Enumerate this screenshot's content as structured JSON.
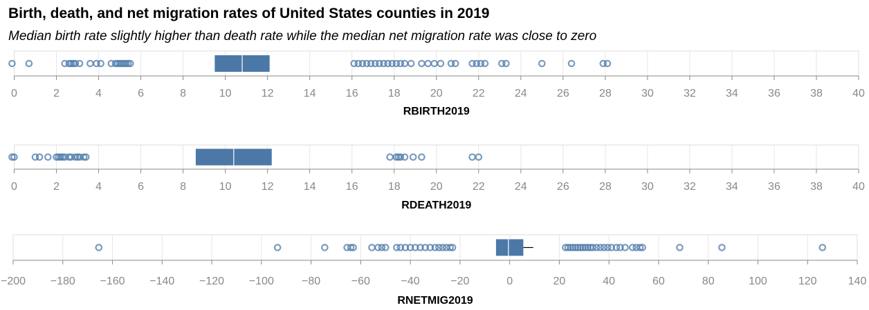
{
  "title": "Birth, death, and net migration rates of United States counties in 2019",
  "subtitle": "Median birth rate slightly higher than death rate while the median net migration rate was close to zero",
  "colors": {
    "box": "#4c78a8",
    "outlier": "#4c78a8",
    "median": "#ffffff",
    "grid": "#e6e6e6",
    "frame": "#dddddd",
    "tick_label": "#888888"
  },
  "chart_data": [
    {
      "type": "boxplot",
      "xlabel": "RBIRTH2019",
      "xlim": [
        0,
        40
      ],
      "ticks": [
        0,
        2,
        4,
        6,
        8,
        10,
        12,
        14,
        16,
        18,
        20,
        22,
        24,
        26,
        28,
        30,
        32,
        34,
        36,
        38,
        40
      ],
      "grid": true,
      "q1": 9.5,
      "median": 10.8,
      "q3": 12.1,
      "whisker_low": 9.5,
      "whisker_high": 12.1,
      "outliers": [
        -0.1,
        0.7,
        2.4,
        2.6,
        2.7,
        2.8,
        2.9,
        3.1,
        3.6,
        3.9,
        4.1,
        4.6,
        4.8,
        4.9,
        5.0,
        5.1,
        5.2,
        5.3,
        5.4,
        5.5,
        16.1,
        16.3,
        16.5,
        16.7,
        16.9,
        17.1,
        17.3,
        17.5,
        17.7,
        17.9,
        18.1,
        18.3,
        18.5,
        18.8,
        19.3,
        19.6,
        19.9,
        20.2,
        20.7,
        20.9,
        21.7,
        21.9,
        22.1,
        22.3,
        23.1,
        23.3,
        25.0,
        26.4,
        27.9,
        28.1
      ]
    },
    {
      "type": "boxplot",
      "xlabel": "RDEATH2019",
      "xlim": [
        0,
        40
      ],
      "ticks": [
        0,
        2,
        4,
        6,
        8,
        10,
        12,
        14,
        16,
        18,
        20,
        22,
        24,
        26,
        28,
        30,
        32,
        34,
        36,
        38,
        40
      ],
      "grid": true,
      "q1": 8.6,
      "median": 10.4,
      "q3": 12.2,
      "whisker_low": 8.6,
      "whisker_high": 12.2,
      "outliers": [
        -0.1,
        0.0,
        1.0,
        1.2,
        1.6,
        2.0,
        2.1,
        2.2,
        2.3,
        2.4,
        2.6,
        2.7,
        2.9,
        3.0,
        3.1,
        3.3,
        3.4,
        17.8,
        18.1,
        18.2,
        18.3,
        18.5,
        18.9,
        19.3,
        21.7,
        22.0
      ]
    },
    {
      "type": "boxplot",
      "xlabel": "RNETMIG2019",
      "xlim": [
        -200,
        140
      ],
      "ticks": [
        -200,
        -180,
        -160,
        -140,
        -120,
        -100,
        -80,
        -60,
        -40,
        -20,
        0,
        20,
        40,
        60,
        80,
        100,
        120,
        140
      ],
      "grid": true,
      "q1": -5.5,
      "median": -0.5,
      "q3": 5.5,
      "whisker_low": -5.5,
      "whisker_high": 9.5,
      "outliers": [
        -165.5,
        -93.5,
        -74.5,
        -65.5,
        -64.0,
        -63.0,
        -55.5,
        -53.0,
        -51.5,
        -50.0,
        -45.5,
        -44.0,
        -42.0,
        -40.0,
        -38.0,
        -36.0,
        -34.0,
        -32.0,
        -30.0,
        -28.5,
        -27.0,
        -25.5,
        -24.0,
        -23.0,
        22.5,
        23.5,
        24.5,
        25.5,
        26.5,
        27.5,
        28.5,
        29.5,
        30.5,
        31.5,
        32.5,
        33.5,
        35.0,
        36.5,
        38.0,
        39.5,
        41.0,
        43.0,
        44.5,
        46.5,
        49.5,
        51.0,
        52.5,
        53.5,
        68.5,
        85.5,
        126.0
      ]
    }
  ]
}
